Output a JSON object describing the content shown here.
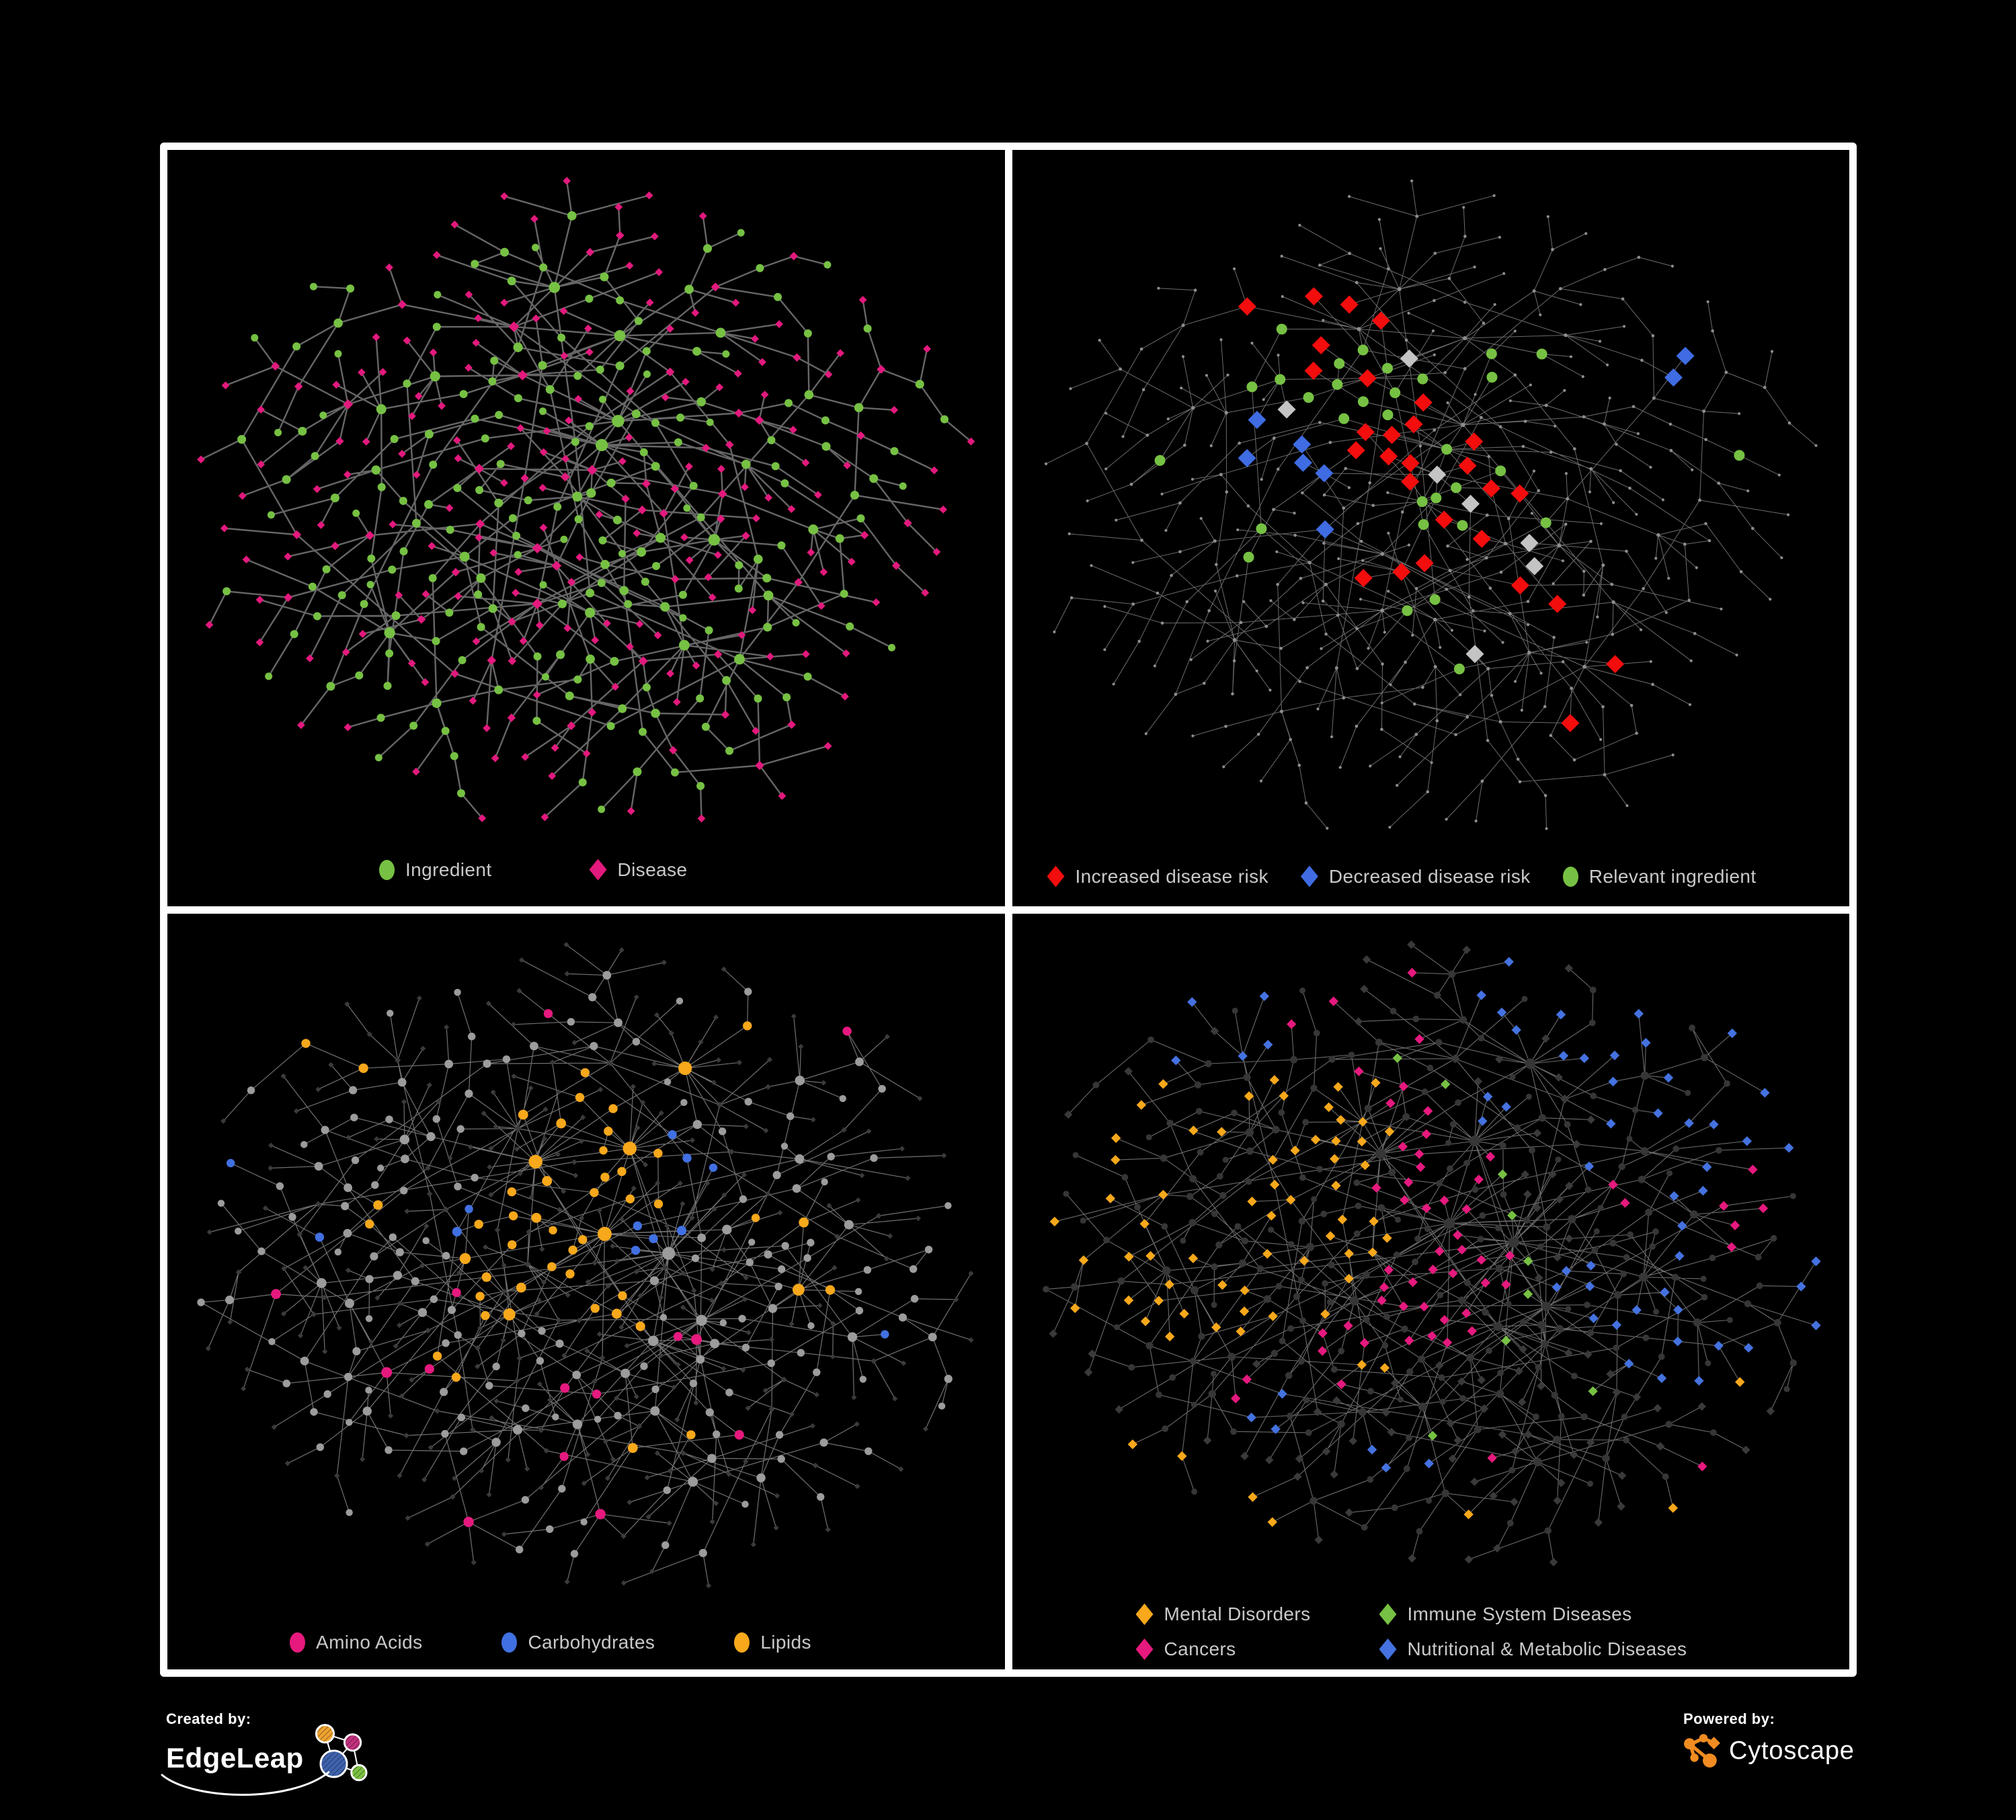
{
  "page": {
    "background": "#000000",
    "panel_border_color": "#FFFFFF",
    "panel_background": "#000000",
    "legend_text_color": "#C9C9C9"
  },
  "panels": [
    {
      "id": "ingredient-disease",
      "legend": [
        {
          "label": "Ingredient",
          "shape": "ellipse",
          "color": "#76C143"
        },
        {
          "label": "Disease",
          "shape": "diamond",
          "color": "#E3197D"
        }
      ]
    },
    {
      "id": "disease-risk",
      "legend": [
        {
          "label": "Increased disease risk",
          "shape": "diamond",
          "color": "#F30D0D"
        },
        {
          "label": "Decreased disease risk",
          "shape": "diamond",
          "color": "#3F6CE3"
        },
        {
          "label": "Relevant ingredient",
          "shape": "ellipse",
          "color": "#76C143"
        }
      ]
    },
    {
      "id": "nutrient-classes",
      "legend": [
        {
          "label": "Amino Acids",
          "shape": "ellipse",
          "color": "#E6197E"
        },
        {
          "label": "Carbohydrates",
          "shape": "ellipse",
          "color": "#4170E2"
        },
        {
          "label": "Lipids",
          "shape": "ellipse",
          "color": "#F7A81B"
        }
      ]
    },
    {
      "id": "disease-classes",
      "legend": [
        {
          "label": "Mental Disorders",
          "shape": "diamond",
          "color": "#F7A81B"
        },
        {
          "label": "Immune System Diseases",
          "shape": "diamond",
          "color": "#76C143"
        },
        {
          "label": "Cancers",
          "shape": "diamond",
          "color": "#E6197E"
        },
        {
          "label": "Nutritional & Metabolic Diseases",
          "shape": "diamond",
          "color": "#4472E0"
        }
      ]
    }
  ],
  "footer": {
    "created_by_label": "Created by:",
    "created_by_name": "EdgeLeap",
    "powered_by_label": "Powered by:",
    "powered_by_name": "Cytoscape",
    "cytoscape_orange": "#F08C21",
    "edgeleap_colors": {
      "orange": "#F0A32F",
      "magenta": "#C2317E",
      "blue": "#4063AE",
      "green": "#7CC142"
    }
  },
  "chart_data": {
    "type": "network-diagram",
    "description": "Four views of an ingredient-disease association network. Top row: one network shown with full node coloring (left) and with disease-risk highlights (right). Bottom row: a larger network colored by nutrient classes (left) and by disease classes (right).",
    "networks": {
      "top": {
        "seed": 7,
        "nodes": 430,
        "hubBias": 0.42,
        "recentWindow": 60,
        "extraFrac": 0.1,
        "step": 26,
        "iters": 95,
        "krep": 600,
        "kspring": 0.05,
        "grav": 0.015,
        "maxMove": 14,
        "repRange": 200,
        "leafDiseaseProb": 0.85,
        "internalIngredientProb": 0.72
      },
      "bottom": {
        "seed": 23,
        "nodes": 530,
        "hubBias": 0.5,
        "recentWindow": 48,
        "extraFrac": 0.12,
        "step": 24,
        "iters": 95,
        "krep": 520,
        "kspring": 0.05,
        "grav": 0.016,
        "maxMove": 13,
        "repRange": 190,
        "leafDiseaseProb": 0.88,
        "internalIngredientProb": 0.8
      }
    },
    "panels": [
      {
        "network": "top",
        "bottomMargin": 130,
        "edge": {
          "color": "#6B6B6B",
          "width": 2.4,
          "opacity": 0.95
        },
        "base": {
          "ingredient": {
            "shape": "circle",
            "color": "#76C143",
            "r0": 4.2,
            "rk": 1.3
          },
          "disease": {
            "shape": "diamond",
            "color": "#E3197D",
            "r0": 5.0,
            "rk": 0.9
          }
        },
        "highlights": []
      },
      {
        "network": "top",
        "bottomMargin": 115,
        "edge": {
          "color": "#787878",
          "width": 1.0,
          "opacity": 0.9
        },
        "base": {
          "ingredient": {
            "shape": "circle",
            "color": "#8E8E8E",
            "r0": 1.7,
            "rk": 0.4
          },
          "disease": {
            "shape": "circle",
            "color": "#8E8E8E",
            "r0": 1.7,
            "rk": 0.4
          }
        },
        "highlights": [
          {
            "target": "disease",
            "shape": "diamond",
            "color": "#F30D0D",
            "size": 13.5,
            "anchors": [
              [
                0.4,
                0.16,
                3
              ],
              [
                0.47,
                0.4,
                8
              ],
              [
                0.35,
                0.31,
                3
              ],
              [
                0.57,
                0.42,
                4
              ],
              [
                0.52,
                0.56,
                3
              ],
              [
                0.62,
                0.66,
                2
              ],
              [
                0.72,
                0.8,
                2
              ],
              [
                0.3,
                0.22,
                1
              ],
              [
                0.44,
                0.62,
                2
              ]
            ]
          },
          {
            "target": "disease",
            "shape": "diamond",
            "color": "#C4C4C4",
            "size": 13.5,
            "anchors": [
              [
                0.43,
                0.28,
                1
              ],
              [
                0.53,
                0.47,
                2
              ],
              [
                0.61,
                0.56,
                2
              ],
              [
                0.33,
                0.35,
                1
              ],
              [
                0.57,
                0.73,
                1
              ]
            ]
          },
          {
            "target": "disease",
            "shape": "diamond",
            "color": "#3F6CE3",
            "size": 13.5,
            "anchors": [
              [
                0.82,
                0.33,
                2
              ],
              [
                0.34,
                0.46,
                3
              ],
              [
                0.3,
                0.41,
                2
              ],
              [
                0.36,
                0.52,
                1
              ]
            ]
          },
          {
            "target": "ingredient",
            "shape": "circle",
            "color": "#76C143",
            "size": 8,
            "anchors": [
              [
                0.43,
                0.33,
                9
              ],
              [
                0.54,
                0.49,
                7
              ],
              [
                0.31,
                0.28,
                4
              ],
              [
                0.16,
                0.42,
                1
              ],
              [
                0.86,
                0.42,
                1
              ],
              [
                0.62,
                0.3,
                3
              ],
              [
                0.47,
                0.66,
                2
              ],
              [
                0.25,
                0.55,
                2
              ],
              [
                0.55,
                0.77,
                1
              ],
              [
                0.7,
                0.52,
                1
              ]
            ]
          }
        ]
      },
      {
        "network": "bottom",
        "bottomMargin": 125,
        "edge": {
          "color": "#979797",
          "width": 1.2,
          "opacity": 0.75
        },
        "base": {
          "ingredient": {
            "shape": "circle",
            "color": "#9C9C9C",
            "r0": 3.9,
            "rk": 1.25
          },
          "disease": {
            "shape": "diamond",
            "color": "#3B3B3B",
            "r0": 3.6,
            "rk": 0.45
          }
        },
        "highlights": [
          {
            "target": "ingredient",
            "shape": "circle",
            "color": "#F7A81B",
            "sizePlus": 1.0,
            "anchors": [
              [
                0.5,
                0.36,
                18
              ],
              [
                0.42,
                0.5,
                12
              ],
              [
                0.56,
                0.57,
                4
              ],
              [
                0.2,
                0.15,
                2
              ],
              [
                0.65,
                0.15,
                2
              ],
              [
                0.76,
                0.42,
                2
              ],
              [
                0.8,
                0.56,
                2
              ],
              [
                0.33,
                0.65,
                2
              ],
              [
                0.22,
                0.42,
                2
              ],
              [
                0.6,
                0.78,
                2
              ],
              [
                0.45,
                0.25,
                3
              ]
            ]
          },
          {
            "target": "ingredient",
            "shape": "circle",
            "color": "#4170E2",
            "sizePlus": 1.0,
            "anchors": [
              [
                0.53,
                0.36,
                7
              ],
              [
                0.14,
                0.44,
                1
              ],
              [
                0.88,
                0.62,
                1
              ],
              [
                0.42,
                0.43,
                2
              ],
              [
                0.07,
                0.33,
                1
              ]
            ]
          },
          {
            "target": "ingredient",
            "shape": "circle",
            "color": "#E6197E",
            "sizePlus": 1.0,
            "anchors": [
              [
                0.26,
                0.63,
                2
              ],
              [
                0.5,
                0.71,
                2
              ],
              [
                0.48,
                0.82,
                1
              ],
              [
                0.62,
                0.63,
                2
              ],
              [
                0.36,
                0.56,
                1
              ],
              [
                0.08,
                0.53,
                1
              ],
              [
                0.45,
                0.05,
                1
              ],
              [
                0.88,
                0.05,
                1
              ],
              [
                0.7,
                0.75,
                1
              ],
              [
                0.3,
                0.88,
                1
              ],
              [
                0.55,
                0.9,
                1
              ]
            ]
          }
        ]
      },
      {
        "network": "bottom",
        "bottomMargin": 160,
        "edge": {
          "color": "#8F8F8F",
          "width": 1.1,
          "opacity": 0.75
        },
        "base": {
          "ingredient": {
            "shape": "circle",
            "color": "#363636",
            "r0": 3.4,
            "rk": 1.05
          },
          "disease": {
            "shape": "diamond",
            "color": "#3A3A3A",
            "r0": 6.0,
            "rk": 0.25
          }
        },
        "highlights": [
          {
            "target": "disease",
            "shape": "diamond",
            "color": "#F7A81B",
            "size": 7.2,
            "anchors": [
              [
                0.22,
                0.45,
                52
              ],
              [
                0.35,
                0.3,
                6
              ],
              [
                0.42,
                0.7,
                2
              ],
              [
                0.3,
                0.9,
                2
              ],
              [
                0.55,
                0.95,
                1
              ],
              [
                0.78,
                0.93,
                1
              ],
              [
                0.9,
                0.72,
                1
              ],
              [
                0.14,
                0.8,
                2
              ]
            ]
          },
          {
            "target": "disease",
            "shape": "diamond",
            "color": "#E6197E",
            "size": 7.2,
            "anchors": [
              [
                0.44,
                0.52,
                34
              ],
              [
                0.38,
                0.42,
                8
              ],
              [
                0.95,
                0.42,
                5
              ],
              [
                0.77,
                0.36,
                2
              ],
              [
                0.25,
                0.73,
                2
              ],
              [
                0.5,
                0.1,
                2
              ],
              [
                0.33,
                0.1,
                2
              ],
              [
                0.58,
                0.85,
                1
              ],
              [
                0.9,
                0.88,
                1
              ]
            ]
          },
          {
            "target": "disease",
            "shape": "diamond",
            "color": "#4472E0",
            "size": 7.2,
            "anchors": [
              [
                0.84,
                0.44,
                10
              ],
              [
                0.86,
                0.62,
                8
              ],
              [
                0.7,
                0.56,
                5
              ],
              [
                0.62,
                0.08,
                5
              ],
              [
                0.87,
                0.1,
                6
              ],
              [
                0.28,
                0.16,
                3
              ],
              [
                0.45,
                0.86,
                3
              ],
              [
                0.3,
                0.76,
                3
              ],
              [
                0.95,
                0.25,
                3
              ],
              [
                0.55,
                0.3,
                3
              ],
              [
                0.12,
                0.12,
                2
              ],
              [
                0.75,
                0.2,
                4
              ],
              [
                0.92,
                0.52,
                3
              ]
            ]
          },
          {
            "target": "disease",
            "shape": "diamond",
            "color": "#76C143",
            "size": 7.2,
            "anchors": [
              [
                0.48,
                0.33,
                2
              ],
              [
                0.53,
                0.6,
                2
              ],
              [
                0.36,
                0.3,
                1
              ],
              [
                0.6,
                0.5,
                1
              ],
              [
                0.44,
                0.42,
                1
              ],
              [
                0.68,
                0.72,
                1
              ],
              [
                0.5,
                0.78,
                1
              ]
            ]
          }
        ]
      }
    ]
  }
}
